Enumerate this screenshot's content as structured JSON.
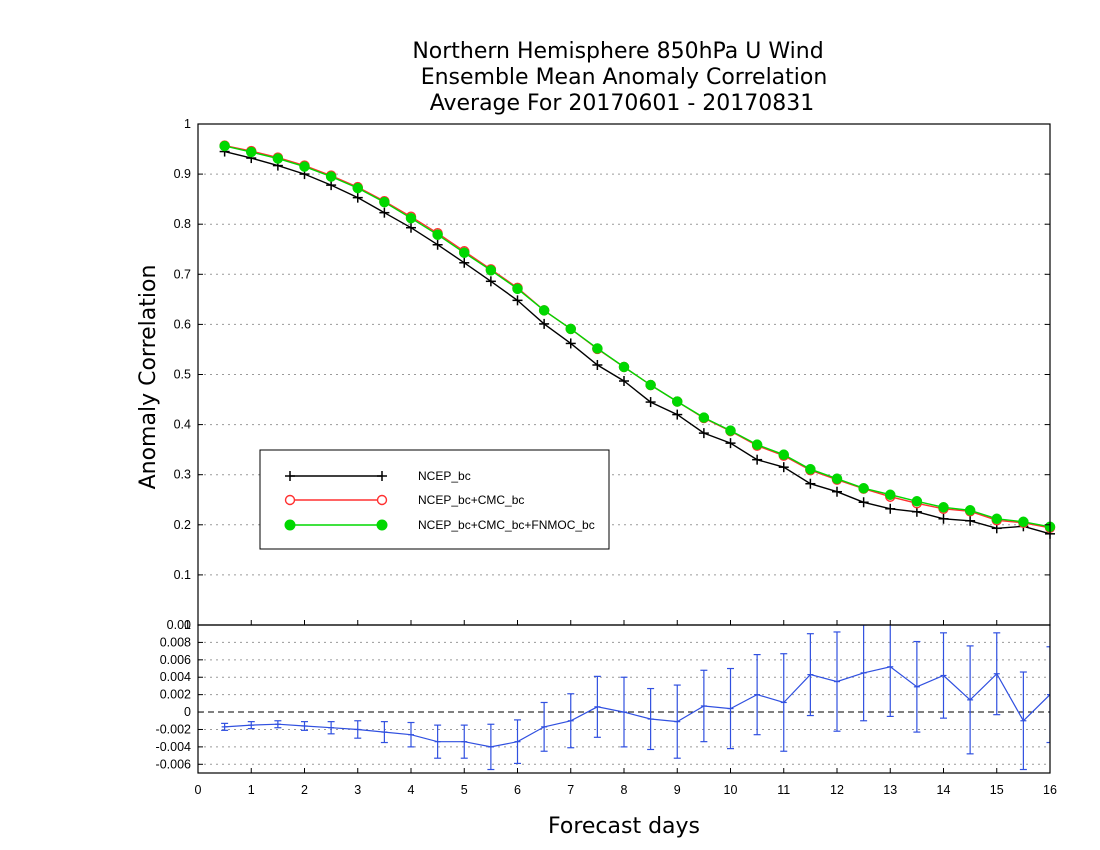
{
  "title": {
    "line1": "Northern Hemisphere 850hPa U Wind",
    "line2": "Ensemble Mean Anomaly Correlation",
    "line3": "Average For 20170601 - 20170831"
  },
  "chart_data": [
    {
      "type": "line",
      "title": "Northern Hemisphere 850hPa U Wind / Ensemble Mean Anomaly Correlation / Average For 20170601 - 20170831",
      "xlabel": "Forecast days",
      "ylabel": "Anomaly Correlation",
      "xlim": [
        0,
        16
      ],
      "ylim": [
        0,
        1
      ],
      "x_ticks": [
        "0",
        "1",
        "2",
        "3",
        "4",
        "5",
        "6",
        "7",
        "8",
        "9",
        "10",
        "11",
        "12",
        "13",
        "14",
        "15",
        "16"
      ],
      "y_ticks": [
        "0",
        "0.1",
        "0.2",
        "0.3",
        "0.4",
        "0.5",
        "0.6",
        "0.7",
        "0.8",
        "0.9",
        "1"
      ],
      "grid": "horizontal dotted",
      "legend_position": "lower-left",
      "x": [
        0.5,
        1,
        1.5,
        2,
        2.5,
        3,
        3.5,
        4,
        4.5,
        5,
        5.5,
        6,
        6.5,
        7,
        7.5,
        8,
        8.5,
        9,
        9.5,
        10,
        10.5,
        11,
        11.5,
        12,
        12.5,
        13,
        13.5,
        14,
        14.5,
        15,
        15.5,
        16
      ],
      "series": [
        {
          "name": "NCEP_bc",
          "color": "#000000",
          "marker": "plus",
          "values": [
            0.945,
            0.932,
            0.917,
            0.9,
            0.878,
            0.853,
            0.823,
            0.793,
            0.759,
            0.723,
            0.686,
            0.648,
            0.601,
            0.562,
            0.519,
            0.487,
            0.445,
            0.42,
            0.383,
            0.363,
            0.33,
            0.315,
            0.282,
            0.266,
            0.245,
            0.232,
            0.226,
            0.212,
            0.208,
            0.193,
            0.197,
            0.182
          ]
        },
        {
          "name": "NCEP_bc+CMC_bc",
          "color": "#ff3030",
          "marker": "open-circle",
          "values": [
            0.957,
            0.946,
            0.933,
            0.917,
            0.897,
            0.874,
            0.846,
            0.815,
            0.782,
            0.746,
            0.71,
            0.673,
            0.628,
            0.591,
            0.551,
            0.515,
            0.479,
            0.446,
            0.413,
            0.387,
            0.358,
            0.338,
            0.309,
            0.29,
            0.272,
            0.256,
            0.243,
            0.232,
            0.227,
            0.209,
            0.204,
            0.194
          ]
        },
        {
          "name": "NCEP_bc+CMC_bc+FNMOC_bc",
          "color": "#00d800",
          "marker": "filled-circle",
          "values": [
            0.956,
            0.944,
            0.931,
            0.915,
            0.895,
            0.872,
            0.844,
            0.812,
            0.779,
            0.743,
            0.708,
            0.671,
            0.628,
            0.591,
            0.552,
            0.515,
            0.479,
            0.446,
            0.414,
            0.388,
            0.36,
            0.34,
            0.311,
            0.292,
            0.273,
            0.26,
            0.247,
            0.235,
            0.229,
            0.212,
            0.206,
            0.196
          ]
        }
      ]
    },
    {
      "type": "line",
      "subtype": "difference with error bars",
      "xlabel": "Forecast days",
      "ylabel": "",
      "xlim": [
        0,
        16
      ],
      "ylim": [
        -0.007,
        0.01
      ],
      "y_ticks": [
        "-0.006",
        "-0.004",
        "-0.002",
        "0",
        "0.002",
        "0.004",
        "0.006",
        "0.008",
        "0.01"
      ],
      "grid": "horizontal dotted",
      "zero_line": "dashed",
      "color": "#3050e0",
      "x": [
        0.5,
        1,
        1.5,
        2,
        2.5,
        3,
        3.5,
        4,
        4.5,
        5,
        5.5,
        6,
        6.5,
        7,
        7.5,
        8,
        8.5,
        9,
        9.5,
        10,
        10.5,
        11,
        11.5,
        12,
        12.5,
        13,
        13.5,
        14,
        14.5,
        15,
        15.5,
        16
      ],
      "values": [
        -0.0017,
        -0.0015,
        -0.0014,
        -0.0016,
        -0.0018,
        -0.002,
        -0.0023,
        -0.0026,
        -0.0034,
        -0.0034,
        -0.004,
        -0.0034,
        -0.0017,
        -0.001,
        0.0006,
        0.0,
        -0.0008,
        -0.0011,
        0.0007,
        0.0004,
        0.002,
        0.0011,
        0.0043,
        0.0035,
        0.0045,
        0.0052,
        0.0029,
        0.0042,
        0.0014,
        0.0044,
        -0.001,
        0.002
      ],
      "errors": [
        0.0004,
        0.0004,
        0.0004,
        0.0005,
        0.0007,
        0.001,
        0.0012,
        0.0014,
        0.0019,
        0.0019,
        0.0026,
        0.0025,
        0.0028,
        0.0031,
        0.0035,
        0.004,
        0.0035,
        0.0042,
        0.0041,
        0.0046,
        0.0046,
        0.0056,
        0.0047,
        0.0057,
        0.0055,
        0.0057,
        0.0052,
        0.0049,
        0.0062,
        0.0047,
        0.0056,
        0.0055
      ]
    }
  ]
}
